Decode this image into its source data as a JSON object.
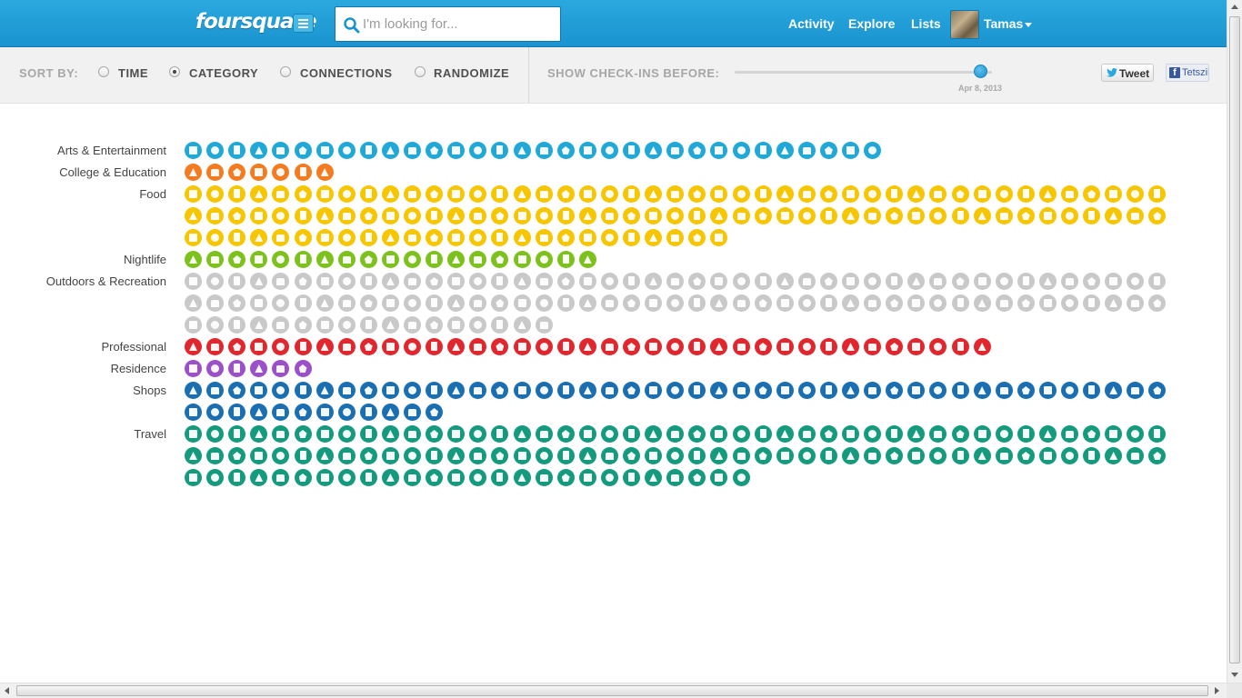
{
  "header": {
    "logo_text": "foursquare",
    "search_placeholder": "I'm looking for...",
    "nav": [
      "Activity",
      "Explore",
      "Lists"
    ],
    "user_name": "Tamas",
    "brand_color": "#22a1da"
  },
  "controls": {
    "sort_label": "SORT BY:",
    "sort_options": [
      "TIME",
      "CATEGORY",
      "CONNECTIONS",
      "RANDOMIZE"
    ],
    "selected_sort": "CATEGORY",
    "show_label": "SHOW CHECK-INS BEFORE:",
    "slider_date": "Apr 8, 2013",
    "slider_value_fraction": 0.95,
    "tweet_label": "Tweet",
    "facebook_label": "Tetszik"
  },
  "categories": [
    {
      "name": "Arts & Entertainment",
      "count": 32,
      "color": "#1fa8d8",
      "rows": 1
    },
    {
      "name": "College & Education",
      "count": 7,
      "color": "#f47b1f",
      "rows": 1
    },
    {
      "name": "Food",
      "count": 115,
      "color": "#f7c600",
      "rows": 3
    },
    {
      "name": "Nightlife",
      "count": 19,
      "color": "#7dc11d",
      "rows": 1
    },
    {
      "name": "Outdoors & Recreation",
      "count": 107,
      "color": "#c9c9c9",
      "rows": 3
    },
    {
      "name": "Professional",
      "count": 37,
      "color": "#e2262d",
      "rows": 1
    },
    {
      "name": "Residence",
      "count": 6,
      "color": "#9b4fc8",
      "rows": 1
    },
    {
      "name": "Shops",
      "count": 57,
      "color": "#1a6fb3",
      "rows": 2
    },
    {
      "name": "Travel",
      "count": 116,
      "color": "#149a7c",
      "rows": 3
    }
  ]
}
